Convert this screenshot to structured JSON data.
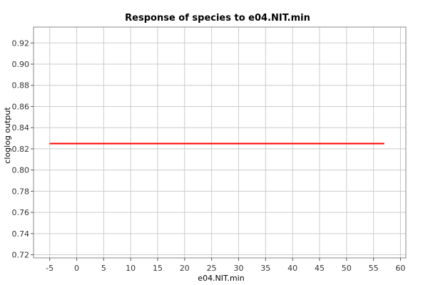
{
  "chart_data": {
    "type": "line",
    "title": "Response of species to e04.NIT.min",
    "xlabel": "e04.NIT.min",
    "ylabel": "cloglog output",
    "xlim": [
      -8,
      61
    ],
    "ylim": [
      0.717,
      0.935
    ],
    "x_ticks": [
      -5,
      0,
      5,
      10,
      15,
      20,
      25,
      30,
      35,
      40,
      45,
      50,
      55,
      60
    ],
    "y_ticks": [
      0.72,
      0.74,
      0.76,
      0.78,
      0.8,
      0.82,
      0.84,
      0.86,
      0.88,
      0.9,
      0.92
    ],
    "x_tick_labels": [
      "-5",
      "0",
      "5",
      "10",
      "15",
      "20",
      "25",
      "30",
      "35",
      "40",
      "45",
      "50",
      "55",
      "60"
    ],
    "y_tick_labels": [
      "0.72",
      "0.74",
      "0.76",
      "0.78",
      "0.80",
      "0.82",
      "0.84",
      "0.86",
      "0.88",
      "0.90",
      "0.92"
    ],
    "grid": true,
    "series": [
      {
        "color": "#ff0000",
        "x": [
          -5,
          57
        ],
        "y": [
          0.825,
          0.825
        ]
      }
    ]
  }
}
